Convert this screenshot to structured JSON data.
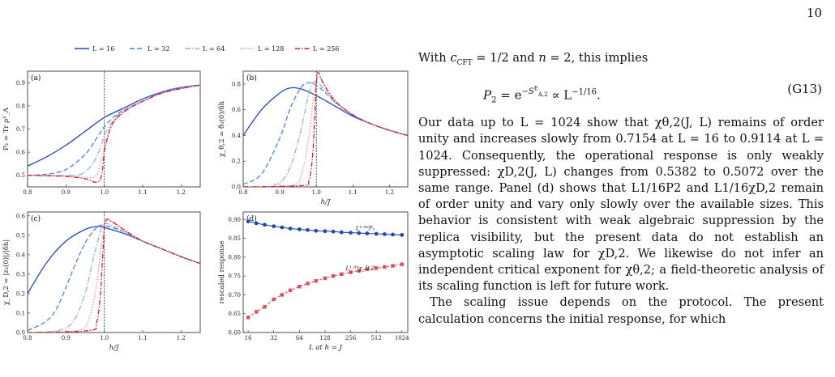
{
  "page_number": "10",
  "legend": [
    "L = 16",
    "L = 32",
    "L = 64",
    "L = 128",
    "L = 256"
  ],
  "series_colors": [
    "#2446b8",
    "#5580d8",
    "#93b1e4",
    "#e89390",
    "#cc2233"
  ],
  "panels": {
    "a": {
      "label": "(a)",
      "ylabel": "P₂ = Tr ρ²_A",
      "xlabel": ""
    },
    "b": {
      "label": "(b)",
      "ylabel": "χ_θ,2 = θ̂₂(0)/δh",
      "xlabel": "h/J"
    },
    "c": {
      "label": "(c)",
      "ylabel": "χ_D,2 = |z₂(0)|/|δh|",
      "xlabel": "h/J"
    },
    "d": {
      "label": "(d)",
      "ylabel": "rescaled response",
      "xlabel": "L at h = J",
      "series_labels": [
        "L¹ᐟ¹⁶P₂",
        "L¹ᐟ¹⁶χ_D,2"
      ]
    }
  },
  "chart_data": [
    {
      "type": "line",
      "panel": "a",
      "x_range": [
        0.8,
        1.25
      ],
      "ylim": [
        0.45,
        0.95
      ],
      "x_ticks": [
        "0.8",
        "0.9",
        "1.0",
        "1.1",
        "1.2"
      ],
      "y_ticks": [
        "0.5",
        "0.6",
        "0.7",
        "0.8",
        "0.9"
      ],
      "vline": 1.0,
      "series": [
        {
          "name": "L = 16",
          "x": [
            0.8,
            0.85,
            0.9,
            0.95,
            1.0,
            1.05,
            1.1,
            1.15,
            1.2,
            1.25
          ],
          "y": [
            0.54,
            0.58,
            0.63,
            0.69,
            0.75,
            0.79,
            0.83,
            0.86,
            0.88,
            0.89
          ]
        },
        {
          "name": "L = 32",
          "x": [
            0.8,
            0.85,
            0.9,
            0.95,
            0.98,
            1.0,
            1.03,
            1.06,
            1.1,
            1.15,
            1.2,
            1.25
          ],
          "y": [
            0.5,
            0.505,
            0.525,
            0.59,
            0.66,
            0.71,
            0.76,
            0.79,
            0.82,
            0.86,
            0.88,
            0.89
          ]
        },
        {
          "name": "L = 64",
          "x": [
            0.8,
            0.9,
            0.94,
            0.97,
            0.99,
            1.0,
            1.02,
            1.05,
            1.1,
            1.15,
            1.2,
            1.25
          ],
          "y": [
            0.5,
            0.5,
            0.505,
            0.55,
            0.62,
            0.67,
            0.73,
            0.78,
            0.82,
            0.855,
            0.875,
            0.89
          ]
        },
        {
          "name": "L = 128",
          "x": [
            0.8,
            0.9,
            0.96,
            0.98,
            0.99,
            1.0,
            1.01,
            1.03,
            1.06,
            1.1,
            1.15,
            1.2,
            1.25
          ],
          "y": [
            0.5,
            0.497,
            0.49,
            0.5,
            0.55,
            0.62,
            0.68,
            0.74,
            0.78,
            0.82,
            0.855,
            0.875,
            0.89
          ]
        },
        {
          "name": "L = 256",
          "x": [
            0.8,
            0.9,
            0.95,
            0.98,
            0.993,
            1.0,
            1.008,
            1.02,
            1.04,
            1.07,
            1.1,
            1.15,
            1.2,
            1.25
          ],
          "y": [
            0.5,
            0.495,
            0.485,
            0.47,
            0.5,
            0.6,
            0.66,
            0.72,
            0.76,
            0.795,
            0.82,
            0.855,
            0.875,
            0.89
          ]
        }
      ]
    },
    {
      "type": "line",
      "panel": "b",
      "x_range": [
        0.8,
        1.25
      ],
      "ylim": [
        0,
        0.9
      ],
      "x_ticks": [
        "0.8",
        "0.9",
        "1.0",
        "1.1",
        "1.2"
      ],
      "y_ticks": [
        "0.0",
        "0.2",
        "0.4",
        "0.6",
        "0.8"
      ],
      "vline": 1.0,
      "series": [
        {
          "name": "L = 16",
          "x": [
            0.8,
            0.85,
            0.9,
            0.93,
            0.96,
            1.0,
            1.05,
            1.1,
            1.15,
            1.2,
            1.25
          ],
          "y": [
            0.4,
            0.6,
            0.73,
            0.77,
            0.76,
            0.71,
            0.63,
            0.55,
            0.49,
            0.44,
            0.4
          ]
        },
        {
          "name": "L = 32",
          "x": [
            0.8,
            0.85,
            0.9,
            0.93,
            0.96,
            0.98,
            1.0,
            1.03,
            1.06,
            1.1,
            1.15,
            1.2,
            1.25
          ],
          "y": [
            0.02,
            0.1,
            0.38,
            0.62,
            0.78,
            0.81,
            0.79,
            0.72,
            0.64,
            0.56,
            0.49,
            0.44,
            0.4
          ]
        },
        {
          "name": "L = 64",
          "x": [
            0.8,
            0.88,
            0.92,
            0.95,
            0.97,
            0.985,
            1.0,
            1.02,
            1.05,
            1.1,
            1.15,
            1.2,
            1.25
          ],
          "y": [
            0.0,
            0.01,
            0.1,
            0.35,
            0.6,
            0.78,
            0.82,
            0.76,
            0.66,
            0.56,
            0.49,
            0.44,
            0.4
          ]
        },
        {
          "name": "L = 128",
          "x": [
            0.8,
            0.93,
            0.96,
            0.98,
            0.99,
            1.0,
            1.01,
            1.03,
            1.06,
            1.1,
            1.15,
            1.2,
            1.25
          ],
          "y": [
            0.0,
            0.01,
            0.1,
            0.4,
            0.65,
            0.83,
            0.85,
            0.76,
            0.65,
            0.56,
            0.49,
            0.44,
            0.4
          ]
        },
        {
          "name": "L = 256",
          "x": [
            0.8,
            0.96,
            0.98,
            0.99,
            0.995,
            1.0,
            1.005,
            1.02,
            1.05,
            1.1,
            1.15,
            1.2,
            1.25
          ],
          "y": [
            0.0,
            0.01,
            0.05,
            0.25,
            0.5,
            0.8,
            0.89,
            0.8,
            0.67,
            0.56,
            0.49,
            0.44,
            0.4
          ]
        }
      ]
    },
    {
      "type": "line",
      "panel": "c",
      "x_range": [
        0.8,
        1.25
      ],
      "ylim": [
        0,
        0.62
      ],
      "x_ticks": [
        "0.8",
        "0.9",
        "1.0",
        "1.1",
        "1.2"
      ],
      "y_ticks": [
        "0.0",
        "0.1",
        "0.2",
        "0.3",
        "0.4",
        "0.5",
        "0.6"
      ],
      "vline": 1.0,
      "series": [
        {
          "name": "L = 16",
          "x": [
            0.8,
            0.85,
            0.9,
            0.95,
            0.98,
            1.0,
            1.05,
            1.1,
            1.15,
            1.2,
            1.25
          ],
          "y": [
            0.2,
            0.36,
            0.47,
            0.53,
            0.545,
            0.54,
            0.51,
            0.47,
            0.43,
            0.39,
            0.355
          ]
        },
        {
          "name": "L = 32",
          "x": [
            0.8,
            0.85,
            0.88,
            0.92,
            0.95,
            0.98,
            1.0,
            1.05,
            1.1,
            1.15,
            1.2,
            1.25
          ],
          "y": [
            0.01,
            0.06,
            0.14,
            0.33,
            0.46,
            0.54,
            0.55,
            0.52,
            0.47,
            0.43,
            0.39,
            0.355
          ]
        },
        {
          "name": "L = 64",
          "x": [
            0.8,
            0.88,
            0.92,
            0.95,
            0.97,
            0.99,
            1.0,
            1.02,
            1.05,
            1.1,
            1.15,
            1.2,
            1.25
          ],
          "y": [
            0.0,
            0.01,
            0.06,
            0.2,
            0.37,
            0.52,
            0.56,
            0.55,
            0.52,
            0.47,
            0.43,
            0.39,
            0.355
          ]
        },
        {
          "name": "L = 128",
          "x": [
            0.8,
            0.93,
            0.96,
            0.98,
            0.99,
            1.0,
            1.01,
            1.03,
            1.06,
            1.1,
            1.15,
            1.2,
            1.25
          ],
          "y": [
            0.0,
            0.01,
            0.07,
            0.25,
            0.42,
            0.54,
            0.575,
            0.56,
            0.52,
            0.47,
            0.43,
            0.39,
            0.355
          ]
        },
        {
          "name": "L = 256",
          "x": [
            0.8,
            0.96,
            0.98,
            0.99,
            0.995,
            1.0,
            1.005,
            1.02,
            1.05,
            1.1,
            1.15,
            1.2,
            1.25
          ],
          "y": [
            0.0,
            0.01,
            0.05,
            0.2,
            0.37,
            0.53,
            0.58,
            0.57,
            0.53,
            0.47,
            0.43,
            0.39,
            0.355
          ]
        }
      ]
    },
    {
      "type": "scatter",
      "panel": "d",
      "x_scale": "log2",
      "x_range": [
        14,
        1200
      ],
      "ylim": [
        0.6,
        0.92
      ],
      "x_ticks": [
        "16",
        "32",
        "64",
        "128",
        "256",
        "512",
        "1024"
      ],
      "y_ticks": [
        "0.60",
        "0.65",
        "0.70",
        "0.75",
        "0.80",
        "0.85",
        "0.90"
      ],
      "x": [
        16,
        20,
        25,
        32,
        40,
        50,
        64,
        80,
        100,
        128,
        160,
        200,
        256,
        320,
        400,
        512,
        640,
        800,
        1024
      ],
      "series": [
        {
          "name": "L¹ᐟ¹⁶P₂",
          "values": [
            0.895,
            0.89,
            0.886,
            0.882,
            0.879,
            0.876,
            0.874,
            0.872,
            0.87,
            0.869,
            0.868,
            0.866,
            0.865,
            0.864,
            0.863,
            0.862,
            0.861,
            0.86,
            0.859
          ]
        },
        {
          "name": "L¹ᐟ¹⁶χ_D,2",
          "values": [
            0.64,
            0.655,
            0.668,
            0.688,
            0.7,
            0.712,
            0.722,
            0.73,
            0.737,
            0.744,
            0.75,
            0.755,
            0.76,
            0.764,
            0.768,
            0.771,
            0.774,
            0.777,
            0.781
          ]
        }
      ]
    }
  ],
  "text": {
    "line1_pre": "With ",
    "line1_c": "c",
    "line1_c_sub": "CFT",
    "line1_mid": " = 1/2 and ",
    "line1_n": "n",
    "line1_post": " = 2, this implies",
    "eq_lhs": "P",
    "eq_lhs_sub": "2",
    "eq_mid": " = e",
    "eq_exp": "−S",
    "eq_exp_sup": "E",
    "eq_exp_sub": "A,2",
    "eq_rhs": " ∝ L",
    "eq_rhs_sup": "−1/16",
    "eq_end": ".",
    "eq_number": "(G13)",
    "para1": "Our data up to L = 1024 show that χθ,2(J, L) remains of order unity and increases slowly from 0.7154 at L = 16 to 0.9114 at L = 1024. Consequently, the operational response is only weakly suppressed: χD,2(J, L) changes from 0.5382 to 0.5072 over the same range. Panel (d) shows that L1/16P2 and L1/16χD,2 remain of order unity and vary only slowly over the available sizes. This behavior is consistent with weak algebraic suppression by the replica visibility, but the present data do not establish an asymptotic scaling law for χD,2. We likewise do not infer an independent critical exponent for χθ,2; a field-theoretic analysis of its scaling function is left for future work.",
    "para2": "The scaling issue depends on the protocol. The present calculation concerns the initial response, for which"
  }
}
